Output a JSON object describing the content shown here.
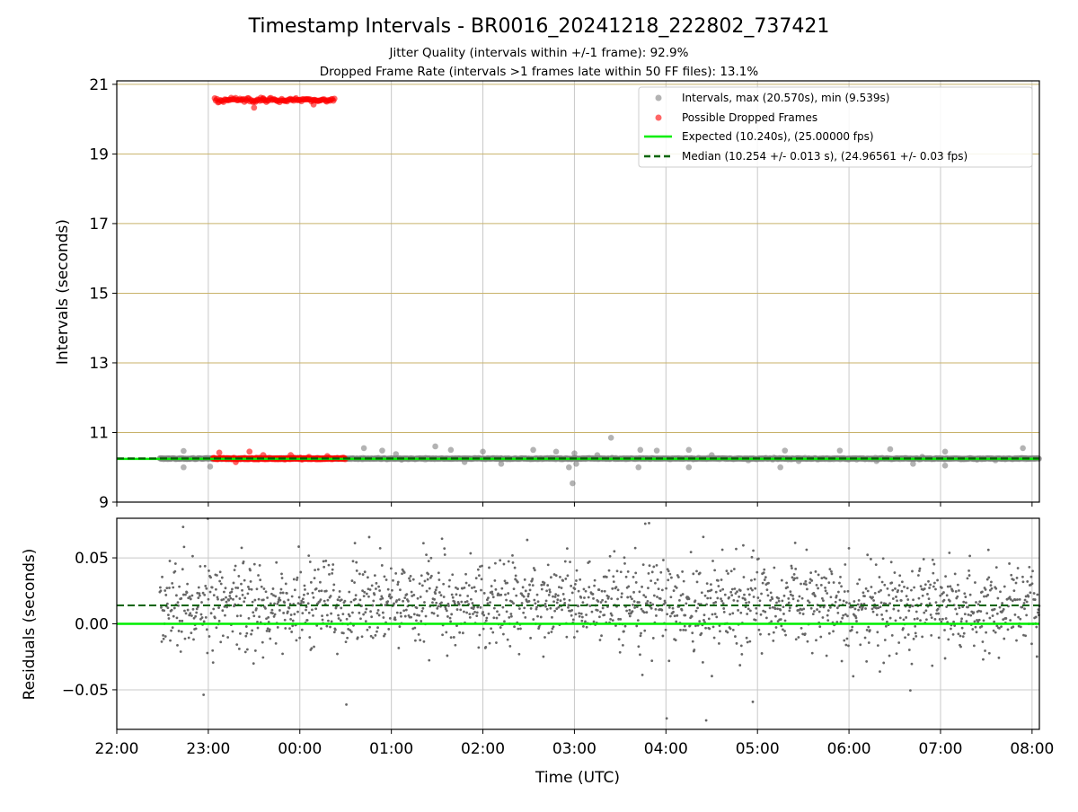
{
  "chart_data": {
    "title": "Timestamp Intervals - BR0016_20241218_222802_737421",
    "subtitles": [
      "Jitter Quality (intervals within +/-1 frame): 92.9%",
      "Dropped Frame Rate (intervals >1 frames late within 50 FF files): 13.1%"
    ],
    "xlabel": "Time (UTC)",
    "x_ticks": [
      "22:00",
      "23:00",
      "00:00",
      "01:00",
      "02:00",
      "03:00",
      "04:00",
      "05:00",
      "06:00",
      "07:00",
      "08:00"
    ],
    "xlim_hours": [
      0,
      10.08
    ],
    "colors": {
      "intervals": "#808080",
      "dropped": "#ff0000",
      "expected": "#00ee00",
      "median": "#006400",
      "grid_h_top": "#c8b26a",
      "grid": "#c8c8c8",
      "residual": "#666666"
    },
    "panels": [
      {
        "type": "scatter",
        "ylabel": "Intervals (seconds)",
        "ylim": [
          9,
          21.1
        ],
        "y_ticks": [
          "9",
          "11",
          "13",
          "15",
          "17",
          "19",
          "21"
        ],
        "y_tick_values": [
          9,
          11,
          13,
          15,
          17,
          19,
          21
        ],
        "expected_value": 10.24,
        "median_value": 10.254,
        "series": [
          {
            "name": "Intervals, max (20.570s), min (9.539s)",
            "kind": "intervals",
            "baseline": 10.25,
            "x_range_hours": [
              0.47,
              10.08
            ],
            "outliers": [
              [
                0.73,
                10.47
              ],
              [
                0.73,
                10.0
              ],
              [
                1.02,
                10.02
              ],
              [
                2.7,
                10.55
              ],
              [
                2.9,
                10.48
              ],
              [
                3.05,
                10.38
              ],
              [
                3.48,
                10.6
              ],
              [
                3.65,
                10.5
              ],
              [
                3.8,
                10.15
              ],
              [
                4.0,
                10.45
              ],
              [
                4.2,
                10.1
              ],
              [
                4.55,
                10.5
              ],
              [
                4.8,
                10.45
              ],
              [
                5.0,
                10.4
              ],
              [
                5.02,
                10.1
              ],
              [
                4.94,
                10.0
              ],
              [
                4.98,
                9.54
              ],
              [
                5.4,
                10.85
              ],
              [
                5.25,
                10.35
              ],
              [
                5.7,
                10.0
              ],
              [
                5.72,
                10.5
              ],
              [
                5.9,
                10.48
              ],
              [
                6.25,
                10.5
              ],
              [
                6.25,
                10.0
              ],
              [
                6.5,
                10.35
              ],
              [
                6.9,
                10.2
              ],
              [
                7.25,
                10.0
              ],
              [
                7.3,
                10.48
              ],
              [
                7.45,
                10.18
              ],
              [
                7.9,
                10.48
              ],
              [
                8.3,
                10.18
              ],
              [
                8.45,
                10.52
              ],
              [
                8.7,
                10.1
              ],
              [
                8.8,
                10.3
              ],
              [
                9.05,
                10.45
              ],
              [
                9.05,
                10.05
              ],
              [
                9.4,
                10.22
              ],
              [
                9.9,
                10.55
              ],
              [
                9.6,
                10.2
              ]
            ]
          },
          {
            "name": "Possible Dropped Frames",
            "kind": "dropped",
            "low_band": 10.25,
            "high_band": 20.55,
            "high_x_range_hours": [
              1.07,
              2.38
            ],
            "low_x_range_hours": [
              1.05,
              2.5
            ]
          },
          {
            "name": "Expected (10.240s), (25.00000 fps)",
            "kind": "line"
          },
          {
            "name": "Median (10.254 +/- 0.013 s), (24.96561 +/- 0.03 fps)",
            "kind": "dashed"
          }
        ]
      },
      {
        "type": "scatter",
        "ylabel": "Residuals (seconds)",
        "ylim": [
          -0.08,
          0.08
        ],
        "y_ticks": [
          "−0.05",
          "0.00",
          "0.05"
        ],
        "y_tick_values": [
          -0.05,
          0.0,
          0.05
        ],
        "expected_value": 0.0,
        "median_value": 0.014,
        "residual_center": 0.015,
        "residual_x_range_hours": [
          0.47,
          10.08
        ]
      }
    ]
  }
}
